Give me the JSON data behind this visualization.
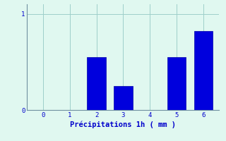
{
  "categories": [
    0,
    1,
    2,
    3,
    4,
    5,
    6
  ],
  "values": [
    0,
    0,
    0.55,
    0.25,
    0,
    0.55,
    0.82
  ],
  "bar_color": "#0000DD",
  "bar_edge_color": "#0000AA",
  "background_color": "#E0F8F0",
  "xlabel": "Précipitations 1h ( mm )",
  "xlabel_color": "#0000CC",
  "xlabel_fontsize": 7.5,
  "yticks": [
    0,
    1
  ],
  "ylim": [
    0,
    1.1
  ],
  "xlim": [
    -0.6,
    6.6
  ],
  "xticks": [
    0,
    1,
    2,
    3,
    4,
    5,
    6
  ],
  "grid_color": "#9ECFCA",
  "axis_color": "#7090A0",
  "tick_color": "#0000CC",
  "tick_fontsize": 6.5,
  "bar_width": 0.7,
  "spine_color": "#7090A0"
}
